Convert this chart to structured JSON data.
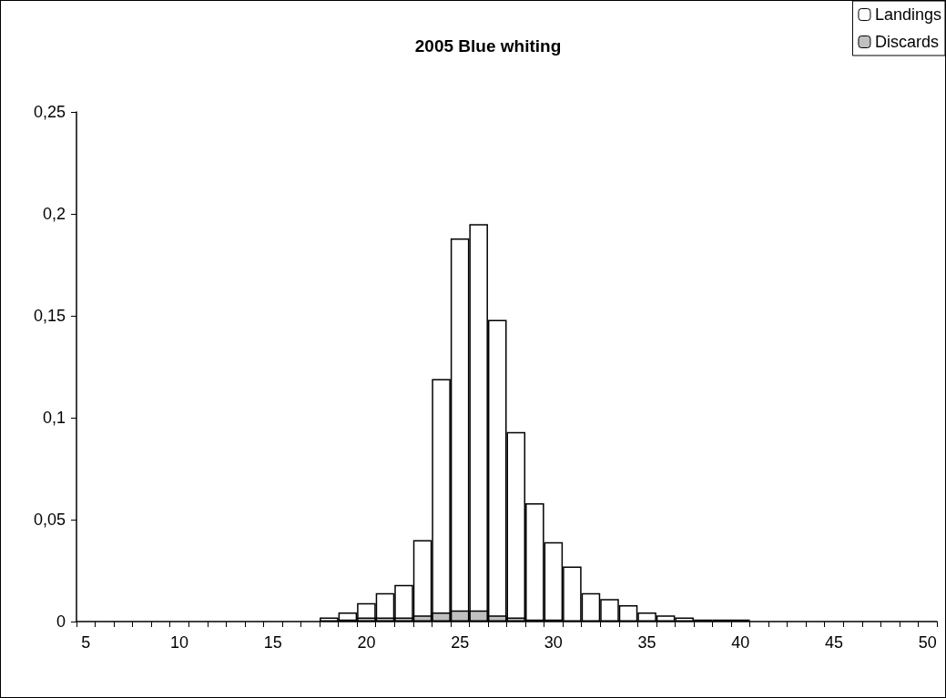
{
  "chart_data": {
    "type": "bar",
    "title": "2005 Blue whiting",
    "categories": [
      "5",
      null,
      null,
      null,
      null,
      "10",
      null,
      null,
      null,
      null,
      "15",
      null,
      null,
      null,
      null,
      "20",
      null,
      null,
      null,
      null,
      "25",
      null,
      null,
      null,
      null,
      "30",
      null,
      null,
      null,
      null,
      "35",
      null,
      null,
      null,
      null,
      "40",
      null,
      null,
      null,
      null,
      "45",
      null,
      null,
      null,
      null,
      "50"
    ],
    "series": [
      {
        "name": "Landings",
        "color": "#ffffff",
        "values": [
          null,
          null,
          null,
          null,
          null,
          null,
          null,
          null,
          null,
          null,
          null,
          null,
          null,
          0.002,
          0.0045,
          0.009,
          0.014,
          0.018,
          0.04,
          0.119,
          0.188,
          0.195,
          0.148,
          0.093,
          0.058,
          0.039,
          0.027,
          0.014,
          0.011,
          0.008,
          0.0045,
          0.003,
          0.002,
          0.001,
          0.001,
          0.001,
          null,
          null,
          null,
          null,
          null,
          null,
          null,
          null,
          null,
          null
        ]
      },
      {
        "name": "Discards",
        "color": "#c0c0c0",
        "values": [
          null,
          null,
          null,
          null,
          null,
          null,
          null,
          null,
          null,
          null,
          null,
          null,
          null,
          null,
          0.001,
          0.002,
          0.002,
          0.002,
          0.003,
          0.0045,
          0.0055,
          0.0055,
          0.003,
          0.002,
          0.001,
          0.001,
          null,
          null,
          null,
          null,
          null,
          null,
          null,
          null,
          null,
          null,
          null,
          null,
          null,
          null,
          null,
          null,
          null,
          null,
          null,
          null
        ]
      }
    ],
    "ylim": [
      0,
      0.25
    ],
    "yticks": [
      0,
      {
        "value": 0.05,
        "label": "0,05"
      },
      {
        "value": 0.1,
        "label": "0,1"
      },
      {
        "value": 0.15,
        "label": "0,15"
      },
      {
        "value": 0.2,
        "label": "0,2"
      },
      {
        "value": 0.25,
        "label": "0,25"
      }
    ],
    "grid": false,
    "legend": "top right"
  }
}
